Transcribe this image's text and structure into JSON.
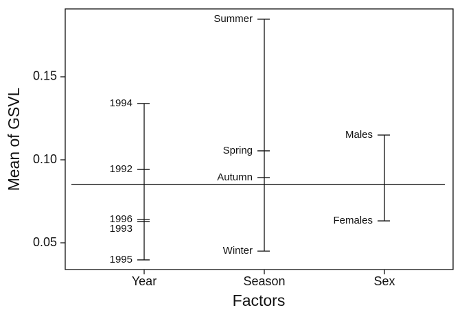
{
  "chart_data": {
    "type": "design",
    "xlabel": "Factors",
    "ylabel": "Mean of GSVL",
    "categories": [
      "Year",
      "Season",
      "Sex"
    ],
    "levels": [
      {
        "names": [
          "1994",
          "1992",
          "1996",
          "1993",
          "1995"
        ],
        "values": [
          0.1339,
          0.0942,
          0.064,
          0.0628,
          0.0397
        ]
      },
      {
        "names": [
          "Summer",
          "Spring",
          "Autumn",
          "Winter"
        ],
        "values": [
          0.1847,
          0.1054,
          0.0893,
          0.045
        ]
      },
      {
        "names": [
          "Males",
          "Females"
        ],
        "values": [
          0.1149,
          0.0632
        ]
      }
    ],
    "grand_mean": 0.0851,
    "ylim": [
      0.0339,
      0.1909
    ],
    "yticks": [
      0.05,
      {
        "value": 0.1,
        "label": "0.10"
      },
      0.15
    ]
  }
}
